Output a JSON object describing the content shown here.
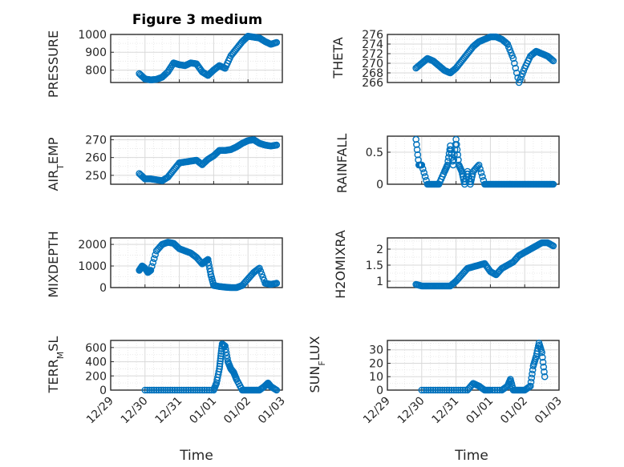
{
  "figure": {
    "title": "Figure 3 medium",
    "xlabel_left": "Time",
    "xlabel_right": "Time",
    "marker_color": "#0072BD"
  },
  "chart_data": [
    {
      "type": "scatter",
      "title": "Figure 3 medium",
      "ylabel": "PRESSURE",
      "xlim": [
        "12/29",
        "01/03"
      ],
      "ylim": [
        730,
        1000
      ],
      "yticks": [
        800,
        900,
        1000
      ],
      "grid": true,
      "x": [
        "12/29 20:00",
        "12/30 00:00",
        "12/30 04:00",
        "12/30 08:00",
        "12/30 12:00",
        "12/30 16:00",
        "12/30 20:00",
        "12/31 00:00",
        "12/31 04:00",
        "12/31 08:00",
        "12/31 12:00",
        "12/31 16:00",
        "12/31 20:00",
        "01/01 00:00",
        "01/01 04:00",
        "01/01 08:00",
        "01/01 12:00",
        "01/01 16:00",
        "01/01 20:00",
        "01/02 00:00",
        "01/02 04:00",
        "01/02 08:00",
        "01/02 12:00",
        "01/02 16:00",
        "01/02 20:00"
      ],
      "y": [
        780,
        750,
        745,
        748,
        760,
        790,
        840,
        830,
        825,
        840,
        835,
        790,
        770,
        800,
        825,
        810,
        880,
        920,
        960,
        990,
        985,
        980,
        960,
        945,
        955
      ]
    },
    {
      "type": "scatter",
      "ylabel": "THETA",
      "xlim": [
        "12/29",
        "01/03"
      ],
      "ylim": [
        266,
        276
      ],
      "yticks": [
        266,
        268,
        270,
        272,
        274,
        276
      ],
      "grid": true,
      "x": [
        "12/29 20:00",
        "12/30 00:00",
        "12/30 04:00",
        "12/30 08:00",
        "12/30 12:00",
        "12/30 16:00",
        "12/30 20:00",
        "12/31 00:00",
        "12/31 04:00",
        "12/31 08:00",
        "12/31 12:00",
        "12/31 16:00",
        "12/31 20:00",
        "01/01 00:00",
        "01/01 04:00",
        "01/01 08:00",
        "01/01 12:00",
        "01/01 16:00",
        "01/01 20:00",
        "01/02 00:00",
        "01/02 04:00",
        "01/02 08:00",
        "01/02 12:00",
        "01/02 16:00",
        "01/02 20:00"
      ],
      "y": [
        269,
        270,
        271,
        270.5,
        269.5,
        268.5,
        268,
        269,
        270.5,
        272,
        273.5,
        274.5,
        275,
        275.5,
        275.5,
        275,
        274,
        271,
        266,
        269,
        271.5,
        272.5,
        272,
        271.5,
        270.5
      ]
    },
    {
      "type": "scatter",
      "ylabel": "AIR_TEMP",
      "xlim": [
        "12/29",
        "01/03"
      ],
      "ylim": [
        245,
        272
      ],
      "yticks": [
        250,
        260,
        270
      ],
      "grid": true,
      "x": [
        "12/29 20:00",
        "12/30 00:00",
        "12/30 04:00",
        "12/30 08:00",
        "12/30 12:00",
        "12/30 16:00",
        "12/30 20:00",
        "12/31 00:00",
        "12/31 04:00",
        "12/31 08:00",
        "12/31 12:00",
        "12/31 16:00",
        "12/31 20:00",
        "01/01 00:00",
        "01/01 04:00",
        "01/01 08:00",
        "01/01 12:00",
        "01/01 16:00",
        "01/01 20:00",
        "01/02 00:00",
        "01/02 04:00",
        "01/02 08:00",
        "01/02 12:00",
        "01/02 16:00",
        "01/02 20:00"
      ],
      "y": [
        251,
        248,
        248,
        247.5,
        247,
        249,
        253,
        257,
        257.5,
        258,
        258.5,
        256,
        259,
        261,
        264,
        264,
        264.5,
        266,
        268,
        269.5,
        270,
        268,
        267,
        266.5,
        267
      ]
    },
    {
      "type": "scatter",
      "ylabel": "RAINFALL",
      "xlim": [
        "12/29",
        "01/03"
      ],
      "ylim": [
        0,
        0.75
      ],
      "yticks": [
        0,
        0.5
      ],
      "grid": true,
      "x": [
        "12/29 20:00",
        "12/29 22:00",
        "12/30 00:00",
        "12/30 04:00",
        "12/30 08:00",
        "12/30 12:00",
        "12/30 16:00",
        "12/30 18:00",
        "12/30 20:00",
        "12/30 22:00",
        "12/31 00:00",
        "12/31 02:00",
        "12/31 04:00",
        "12/31 06:00",
        "12/31 08:00",
        "12/31 10:00",
        "12/31 12:00",
        "12/31 16:00",
        "12/31 20:00",
        "01/01 00:00",
        "01/01 04:00",
        "01/01 08:00",
        "01/01 12:00",
        "01/01 16:00",
        "01/01 20:00",
        "01/02 00:00",
        "01/02 04:00",
        "01/02 08:00",
        "01/02 12:00",
        "01/02 16:00",
        "01/02 20:00"
      ],
      "y": [
        0.7,
        0.3,
        0.3,
        0,
        0,
        0,
        0.2,
        0.3,
        0.6,
        0.3,
        0.7,
        0.3,
        0.2,
        0,
        0.2,
        0,
        0.2,
        0.3,
        0,
        0,
        0,
        0,
        0,
        0,
        0,
        0,
        0,
        0,
        0,
        0,
        0
      ]
    },
    {
      "type": "scatter",
      "ylabel": "MIXDEPTH",
      "xlim": [
        "12/29",
        "01/03"
      ],
      "ylim": [
        0,
        2300
      ],
      "yticks": [
        0,
        1000,
        2000
      ],
      "grid": true,
      "x": [
        "12/29 20:00",
        "12/29 22:00",
        "12/30 00:00",
        "12/30 02:00",
        "12/30 04:00",
        "12/30 08:00",
        "12/30 12:00",
        "12/30 16:00",
        "12/30 20:00",
        "12/31 00:00",
        "12/31 04:00",
        "12/31 08:00",
        "12/31 12:00",
        "12/31 16:00",
        "12/31 18:00",
        "12/31 20:00",
        "12/31 22:00",
        "01/01 00:00",
        "01/01 04:00",
        "01/01 08:00",
        "01/01 12:00",
        "01/01 16:00",
        "01/01 20:00",
        "01/02 00:00",
        "01/02 04:00",
        "01/02 08:00",
        "01/02 12:00",
        "01/02 16:00",
        "01/02 20:00"
      ],
      "y": [
        800,
        1000,
        900,
        700,
        800,
        1700,
        2000,
        2100,
        2050,
        1800,
        1700,
        1600,
        1400,
        1100,
        1200,
        1300,
        600,
        100,
        50,
        20,
        0,
        0,
        100,
        400,
        700,
        900,
        200,
        150,
        200
      ]
    },
    {
      "type": "scatter",
      "ylabel": "H2OMIXRA",
      "xlim": [
        "12/29",
        "01/03"
      ],
      "ylim": [
        0.8,
        2.35
      ],
      "yticks": [
        1,
        1.5,
        2
      ],
      "grid": true,
      "x": [
        "12/29 20:00",
        "12/30 00:00",
        "12/30 04:00",
        "12/30 08:00",
        "12/30 12:00",
        "12/30 16:00",
        "12/30 20:00",
        "12/31 00:00",
        "12/31 04:00",
        "12/31 08:00",
        "12/31 12:00",
        "12/31 16:00",
        "12/31 20:00",
        "01/01 00:00",
        "01/01 04:00",
        "01/01 08:00",
        "01/01 12:00",
        "01/01 16:00",
        "01/01 20:00",
        "01/02 00:00",
        "01/02 04:00",
        "01/02 08:00",
        "01/02 12:00",
        "01/02 16:00",
        "01/02 20:00"
      ],
      "y": [
        0.9,
        0.85,
        0.85,
        0.85,
        0.85,
        0.85,
        0.85,
        1.0,
        1.2,
        1.4,
        1.45,
        1.5,
        1.55,
        1.3,
        1.2,
        1.4,
        1.5,
        1.6,
        1.8,
        1.9,
        2.0,
        2.1,
        2.2,
        2.2,
        2.1
      ]
    },
    {
      "type": "scatter",
      "ylabel": "TERR_MSL",
      "xlim": [
        "12/29",
        "01/03"
      ],
      "ylim": [
        0,
        700
      ],
      "yticks": [
        0,
        200,
        400,
        600
      ],
      "grid": true,
      "x": [
        "12/30 00:00",
        "12/30 08:00",
        "12/30 16:00",
        "12/31 00:00",
        "12/31 08:00",
        "12/31 16:00",
        "01/01 00:00",
        "01/01 02:00",
        "01/01 04:00",
        "01/01 05:00",
        "01/01 06:00",
        "01/01 08:00",
        "01/01 10:00",
        "01/01 12:00",
        "01/01 14:00",
        "01/01 16:00",
        "01/01 20:00",
        "01/02 00:00",
        "01/02 04:00",
        "01/02 08:00",
        "01/02 12:00",
        "01/02 14:00",
        "01/02 16:00",
        "01/02 20:00"
      ],
      "y": [
        0,
        0,
        0,
        0,
        0,
        0,
        0,
        100,
        300,
        480,
        650,
        620,
        400,
        300,
        250,
        150,
        0,
        0,
        0,
        0,
        60,
        100,
        50,
        0
      ]
    },
    {
      "type": "scatter",
      "ylabel": "SUN_FLUX",
      "xlim": [
        "12/29",
        "01/03"
      ],
      "ylim": [
        0,
        37
      ],
      "yticks": [
        0,
        10,
        20,
        30
      ],
      "grid": true,
      "x": [
        "12/30 00:00",
        "12/30 08:00",
        "12/30 16:00",
        "12/31 00:00",
        "12/31 08:00",
        "12/31 12:00",
        "12/31 16:00",
        "12/31 20:00",
        "01/01 00:00",
        "01/01 08:00",
        "01/01 12:00",
        "01/01 14:00",
        "01/01 16:00",
        "01/01 20:00",
        "01/02 00:00",
        "01/02 04:00",
        "01/02 06:00",
        "01/02 08:00",
        "01/02 10:00",
        "01/02 12:00",
        "01/02 14:00"
      ],
      "y": [
        0,
        0,
        0,
        0,
        0,
        5,
        3,
        0,
        0,
        0,
        3,
        8,
        0,
        0,
        0,
        3,
        18,
        25,
        35,
        28,
        10
      ]
    }
  ],
  "xticks": [
    "12/29",
    "12/30",
    "12/31",
    "01/01",
    "01/02",
    "01/03"
  ],
  "ylabel_parts": {
    "air": "AIR",
    "air_sub": "T",
    "air_tail": "EMP",
    "terr": "TERR",
    "terr_sub": "M",
    "terr_tail": "SL",
    "sun": "SUN",
    "sun_sub": "F",
    "sun_tail": "LUX"
  }
}
